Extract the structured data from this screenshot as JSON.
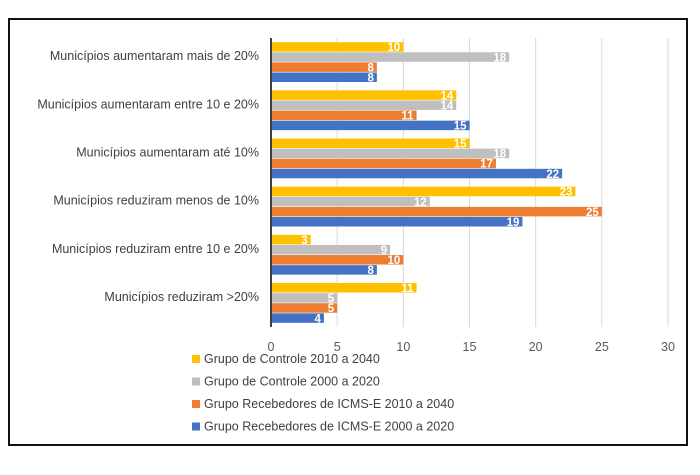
{
  "chart_data": {
    "type": "bar",
    "orientation": "horizontal",
    "title": "",
    "xlabel": "",
    "ylabel": "",
    "xlim": [
      0,
      30
    ],
    "xticks": [
      0,
      5,
      10,
      15,
      20,
      25,
      30
    ],
    "grid": true,
    "legend_position": "bottom",
    "categories": [
      "Municípios aumentaram mais de 20%",
      "Municípios aumentaram entre 10 e 20%",
      "Municípios aumentaram até 10%",
      "Municípios reduziram menos de 10%",
      "Municípios reduziram entre 10 e 20%",
      "Municípios reduziram >20%"
    ],
    "series": [
      {
        "name": "Grupo de Controle 2010 a 2040",
        "color": "#FFC000",
        "values": [
          10,
          14,
          15,
          23,
          3,
          11
        ]
      },
      {
        "name": "Grupo de Controle 2000 a 2020",
        "color": "#BFBFBF",
        "values": [
          18,
          14,
          18,
          12,
          9,
          5
        ]
      },
      {
        "name": "Grupo Recebedores de ICMS-E 2010 a 2040",
        "color": "#ED7D31",
        "values": [
          8,
          11,
          17,
          25,
          10,
          5
        ]
      },
      {
        "name": "Grupo Recebedores de ICMS-E 2000 a 2020",
        "color": "#4472C4",
        "values": [
          8,
          15,
          22,
          19,
          8,
          4
        ]
      }
    ]
  }
}
